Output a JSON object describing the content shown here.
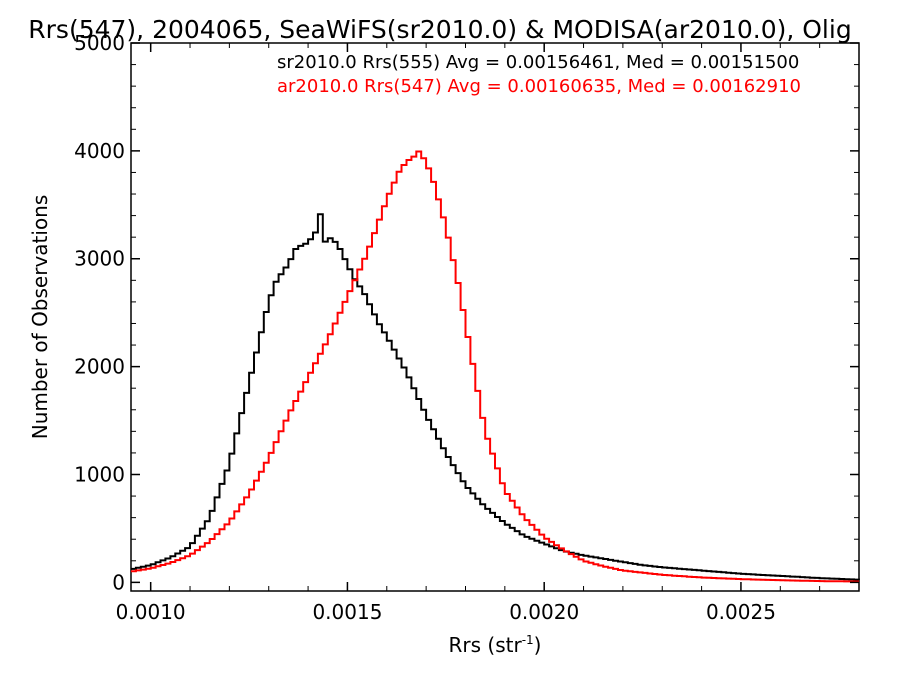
{
  "chart_data": {
    "type": "line",
    "step": true,
    "title": "Rrs(547), 2004065, SeaWiFS(sr2010.0) & MODISA(ar2010.0), Olig",
    "xlabel": "Rrs (str",
    "xlabel_sup": "-1",
    "xlabel_close": ")",
    "ylabel": "Number of Observations",
    "xlim": [
      0.00095,
      0.0028
    ],
    "ylim": [
      -80,
      5000
    ],
    "xticks": [
      0.001,
      0.0015,
      0.002,
      0.0025
    ],
    "xtick_labels": [
      "0.0010",
      "0.0015",
      "0.0020",
      "0.0025"
    ],
    "yticks": [
      0,
      1000,
      2000,
      3000,
      4000,
      5000
    ],
    "ytick_labels": [
      "0",
      "1000",
      "2000",
      "3000",
      "4000",
      "5000"
    ],
    "legend": [
      {
        "text": "sr2010.0 Rrs(555) Avg = 0.00156461, Med = 0.00151500",
        "color": "#000000"
      },
      {
        "text": "ar2010.0 Rrs(547) Avg = 0.00160635, Med = 0.00162910",
        "color": "#ff0000"
      }
    ],
    "series": [
      {
        "color": "#000000",
        "x": [
          0.00095,
          0.001,
          0.00105,
          0.0011,
          0.00115,
          0.0012,
          0.00125,
          0.0013,
          0.00132,
          0.00135,
          0.00137,
          0.0014,
          0.00142,
          0.00143,
          0.00144,
          0.00146,
          0.00148,
          0.0015,
          0.00152,
          0.00154,
          0.00156,
          0.00158,
          0.0016,
          0.00162,
          0.00165,
          0.0017,
          0.00175,
          0.0018,
          0.00185,
          0.0019,
          0.00195,
          0.002,
          0.00205,
          0.0021,
          0.00215,
          0.0022,
          0.00225,
          0.0023,
          0.0024,
          0.0025,
          0.0026,
          0.0027,
          0.0028
        ],
        "y": [
          120,
          160,
          230,
          330,
          600,
          1100,
          1850,
          2600,
          2800,
          2950,
          3100,
          3150,
          3250,
          3450,
          3150,
          3200,
          3100,
          2950,
          2800,
          2700,
          2550,
          2400,
          2280,
          2150,
          1950,
          1550,
          1200,
          900,
          700,
          550,
          430,
          360,
          290,
          250,
          220,
          190,
          160,
          140,
          110,
          80,
          60,
          40,
          25
        ]
      },
      {
        "color": "#ff0000",
        "x": [
          0.00095,
          0.001,
          0.00105,
          0.0011,
          0.00115,
          0.0012,
          0.00125,
          0.0013,
          0.00135,
          0.0014,
          0.00145,
          0.0015,
          0.00155,
          0.0016,
          0.00163,
          0.00165,
          0.00167,
          0.00168,
          0.0017,
          0.00172,
          0.00175,
          0.00178,
          0.0018,
          0.00183,
          0.00185,
          0.0019,
          0.00195,
          0.002,
          0.00205,
          0.0021,
          0.00215,
          0.0022,
          0.0023,
          0.0024,
          0.0025,
          0.0026,
          0.0027,
          0.0028
        ],
        "y": [
          100,
          130,
          180,
          250,
          380,
          560,
          820,
          1150,
          1550,
          1900,
          2250,
          2650,
          3050,
          3550,
          3800,
          3900,
          3950,
          4000,
          3900,
          3700,
          3300,
          2800,
          2400,
          1800,
          1400,
          850,
          600,
          420,
          300,
          200,
          150,
          110,
          70,
          45,
          30,
          20,
          12,
          8
        ]
      }
    ]
  }
}
